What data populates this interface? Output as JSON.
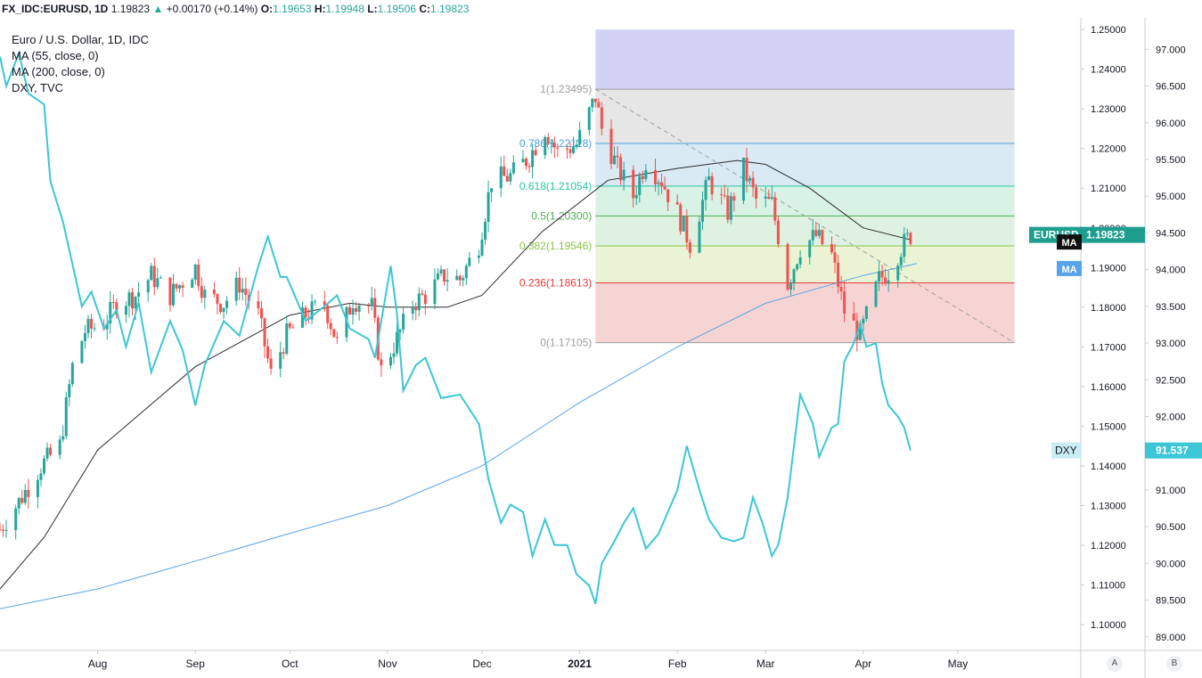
{
  "header": {
    "symbol": "FX_IDC:EURUSD, 1D",
    "last": "1.19823",
    "change_arrow": "▲",
    "change": "+0.00170 (+0.14%)",
    "o_label": "O:",
    "o_value": "1.19653",
    "h_label": "H:",
    "h_value": "1.19948",
    "l_label": "L:",
    "l_value": "1.19506",
    "c_label": "C:",
    "c_value": "1.19823"
  },
  "legend": [
    "Euro / U.S. Dollar, 1D, IDC",
    "MA (55, close, 0)",
    "MA (200, close, 0)",
    "DXY, TVC"
  ],
  "colors": {
    "up": "#26a69a",
    "down": "#ef5350",
    "dxy": "#3cc6d6",
    "ma55": "#2a2a2a",
    "ma200": "#57a5e8",
    "eurusd_tag": "#1e9e8e"
  },
  "labels": {
    "eurusd_tag": "EURUSD",
    "eurusd_price": "1.19823",
    "ma_tag1": "MA",
    "ma_tag2": "MA",
    "dxy_tag": "DXY",
    "dxy_price": "91.537",
    "corner_a": "A",
    "corner_b": "B"
  },
  "chart_data": {
    "type": "candlestick",
    "x_labels": [
      "Aug",
      "Sep",
      "Oct",
      "Nov",
      "Dec",
      "2021",
      "Feb",
      "Mar",
      "Apr",
      "May"
    ],
    "x_range": [
      "2020-07-01",
      "2021-05-31"
    ],
    "axis_a": {
      "name": "EURUSD",
      "ylim": [
        1.0935,
        1.2525
      ],
      "ticks": [
        "1.25000",
        "1.24000",
        "1.23000",
        "1.22000",
        "1.21000",
        "1.20000",
        "1.19000",
        "1.18000",
        "1.17000",
        "1.16000",
        "1.15000",
        "1.14000",
        "1.13000",
        "1.12000",
        "1.11000",
        "1.10000"
      ]
    },
    "axis_b": {
      "name": "DXY",
      "ylim": [
        88.815,
        97.405
      ],
      "ticks": [
        "97.000",
        "96.500",
        "96.000",
        "95.500",
        "95.000",
        "94.500",
        "94.000",
        "93.500",
        "93.000",
        "92.500",
        "92.000",
        "91.500",
        "91.000",
        "90.500",
        "90.000",
        "89.500",
        "89.000"
      ]
    },
    "fibonacci": {
      "start": {
        "date": "2021-01-06",
        "price": 1.23495
      },
      "end": {
        "date": "2021-03-31",
        "price": 1.17105
      },
      "extend_to": "2021-05-19",
      "top_band": 1.25,
      "levels": [
        {
          "label": "1(1.23495)",
          "price": 1.23495,
          "color": "#9e9e9e",
          "fill": "#e6e6e6"
        },
        {
          "label": "0.786(1.22128)",
          "price": 1.22128,
          "color": "#4aa0dc",
          "fill": "#d9eaf5"
        },
        {
          "label": "0.618(1.21054)",
          "price": 1.21054,
          "color": "#26c6a0",
          "fill": "#d8f2e6"
        },
        {
          "label": "0.5(1.20300)",
          "price": 1.203,
          "color": "#4caf50",
          "fill": "#dff2e2"
        },
        {
          "label": "0.382(1.19546)",
          "price": 1.19546,
          "color": "#8bc34a",
          "fill": "#eaf4d4"
        },
        {
          "label": "0.236(1.18613)",
          "price": 1.18613,
          "color": "#e53935",
          "fill": "#f7d4d4"
        },
        {
          "label": "0(1.17105)",
          "price": 1.17105,
          "color": "#9e9e9e",
          "fill": null
        }
      ],
      "extension_fill": "#d2d2f4"
    },
    "eurusd_close_anchors": [
      [
        "2020-07-01",
        1.124
      ],
      [
        "2020-07-07",
        1.131
      ],
      [
        "2020-07-14",
        1.14
      ],
      [
        "2020-07-20",
        1.145
      ],
      [
        "2020-07-24",
        1.165
      ],
      [
        "2020-07-28",
        1.174
      ],
      [
        "2020-08-03",
        1.176
      ],
      [
        "2020-08-07",
        1.181
      ],
      [
        "2020-08-13",
        1.183
      ],
      [
        "2020-08-18",
        1.188
      ],
      [
        "2020-08-24",
        1.183
      ],
      [
        "2020-09-01",
        1.19
      ],
      [
        "2020-09-04",
        1.183
      ],
      [
        "2020-09-10",
        1.181
      ],
      [
        "2020-09-15",
        1.186
      ],
      [
        "2020-09-21",
        1.178
      ],
      [
        "2020-09-25",
        1.163
      ],
      [
        "2020-09-30",
        1.173
      ],
      [
        "2020-10-06",
        1.178
      ],
      [
        "2020-10-12",
        1.181
      ],
      [
        "2020-10-16",
        1.171
      ],
      [
        "2020-10-21",
        1.182
      ],
      [
        "2020-10-27",
        1.18
      ],
      [
        "2020-10-30",
        1.164
      ],
      [
        "2020-11-04",
        1.172
      ],
      [
        "2020-11-09",
        1.181
      ],
      [
        "2020-11-13",
        1.183
      ],
      [
        "2020-11-19",
        1.188
      ],
      [
        "2020-11-24",
        1.187
      ],
      [
        "2020-11-30",
        1.196
      ],
      [
        "2020-12-04",
        1.212
      ],
      [
        "2020-12-10",
        1.213
      ],
      [
        "2020-12-16",
        1.218
      ],
      [
        "2020-12-21",
        1.225
      ],
      [
        "2020-12-25",
        1.219
      ],
      [
        "2020-12-31",
        1.221
      ],
      [
        "2021-01-06",
        1.233
      ],
      [
        "2021-01-08",
        1.225
      ],
      [
        "2021-01-13",
        1.215
      ],
      [
        "2021-01-18",
        1.208
      ],
      [
        "2021-01-22",
        1.217
      ],
      [
        "2021-01-27",
        1.212
      ],
      [
        "2021-02-02",
        1.202
      ],
      [
        "2021-02-05",
        1.196
      ],
      [
        "2021-02-11",
        1.212
      ],
      [
        "2021-02-17",
        1.204
      ],
      [
        "2021-02-22",
        1.215
      ],
      [
        "2021-02-26",
        1.207
      ],
      [
        "2021-03-03",
        1.206
      ],
      [
        "2021-03-08",
        1.186
      ],
      [
        "2021-03-12",
        1.195
      ],
      [
        "2021-03-17",
        1.198
      ],
      [
        "2021-03-22",
        1.193
      ],
      [
        "2021-03-26",
        1.179
      ],
      [
        "2021-03-31",
        1.173
      ],
      [
        "2021-04-06",
        1.187
      ],
      [
        "2021-04-09",
        1.189
      ],
      [
        "2021-04-13",
        1.195
      ],
      [
        "2021-04-16",
        1.19823
      ]
    ],
    "ma55_anchors": [
      [
        "2020-07-01",
        1.109
      ],
      [
        "2020-07-15",
        1.122
      ],
      [
        "2020-08-01",
        1.144
      ],
      [
        "2020-09-01",
        1.165
      ],
      [
        "2020-10-01",
        1.178
      ],
      [
        "2020-10-20",
        1.181
      ],
      [
        "2020-11-01",
        1.18
      ],
      [
        "2020-11-20",
        1.18
      ],
      [
        "2020-12-01",
        1.183
      ],
      [
        "2020-12-20",
        1.199
      ],
      [
        "2021-01-10",
        1.212
      ],
      [
        "2021-02-01",
        1.215
      ],
      [
        "2021-02-20",
        1.217
      ],
      [
        "2021-03-01",
        1.216
      ],
      [
        "2021-03-15",
        1.21
      ],
      [
        "2021-04-01",
        1.2
      ],
      [
        "2021-04-16",
        1.197
      ]
    ],
    "ma200_anchors": [
      [
        "2020-07-01",
        1.104
      ],
      [
        "2020-08-01",
        1.109
      ],
      [
        "2020-09-01",
        1.116
      ],
      [
        "2020-10-01",
        1.123
      ],
      [
        "2020-11-01",
        1.13
      ],
      [
        "2020-12-01",
        1.14
      ],
      [
        "2021-01-01",
        1.156
      ],
      [
        "2021-02-01",
        1.17
      ],
      [
        "2021-03-01",
        1.181
      ],
      [
        "2021-04-01",
        1.188
      ],
      [
        "2021-04-18",
        1.191
      ]
    ],
    "dxy_anchors": [
      [
        "2020-07-01",
        96.9
      ],
      [
        "2020-07-03",
        96.5
      ],
      [
        "2020-07-07",
        96.95
      ],
      [
        "2020-07-10",
        96.4
      ],
      [
        "2020-07-15",
        96.25
      ],
      [
        "2020-07-17",
        95.2
      ],
      [
        "2020-07-21",
        94.65
      ],
      [
        "2020-07-27",
        93.5
      ],
      [
        "2020-07-30",
        93.7
      ],
      [
        "2020-08-03",
        93.2
      ],
      [
        "2020-08-07",
        93.45
      ],
      [
        "2020-08-10",
        92.95
      ],
      [
        "2020-08-14",
        93.55
      ],
      [
        "2020-08-18",
        92.6
      ],
      [
        "2020-08-24",
        93.3
      ],
      [
        "2020-08-28",
        92.9
      ],
      [
        "2020-09-01",
        92.15
      ],
      [
        "2020-09-04",
        92.7
      ],
      [
        "2020-09-10",
        93.3
      ],
      [
        "2020-09-15",
        93.1
      ],
      [
        "2020-09-21",
        94.05
      ],
      [
        "2020-09-24",
        94.45
      ],
      [
        "2020-09-28",
        93.9
      ],
      [
        "2020-09-30",
        93.9
      ],
      [
        "2020-10-06",
        93.3
      ],
      [
        "2020-10-12",
        93.5
      ],
      [
        "2020-10-16",
        93.65
      ],
      [
        "2020-10-20",
        93.2
      ],
      [
        "2020-10-26",
        93.05
      ],
      [
        "2020-10-28",
        92.8
      ],
      [
        "2020-11-02",
        94.05
      ],
      [
        "2020-11-04",
        93.4
      ],
      [
        "2020-11-06",
        92.35
      ],
      [
        "2020-11-10",
        92.7
      ],
      [
        "2020-11-13",
        92.8
      ],
      [
        "2020-11-18",
        92.25
      ],
      [
        "2020-11-24",
        92.3
      ],
      [
        "2020-11-30",
        91.9
      ],
      [
        "2020-12-03",
        91.15
      ],
      [
        "2020-12-07",
        90.55
      ],
      [
        "2020-12-10",
        90.8
      ],
      [
        "2020-12-14",
        90.7
      ],
      [
        "2020-12-17",
        90.1
      ],
      [
        "2020-12-21",
        90.6
      ],
      [
        "2020-12-24",
        90.25
      ],
      [
        "2020-12-28",
        90.25
      ],
      [
        "2020-12-31",
        89.85
      ],
      [
        "2021-01-04",
        89.7
      ],
      [
        "2021-01-06",
        89.45
      ],
      [
        "2021-01-08",
        90.0
      ],
      [
        "2021-01-12",
        90.3
      ],
      [
        "2021-01-15",
        90.55
      ],
      [
        "2021-01-18",
        90.75
      ],
      [
        "2021-01-22",
        90.2
      ],
      [
        "2021-01-26",
        90.4
      ],
      [
        "2021-01-29",
        90.7
      ],
      [
        "2021-02-01",
        91.0
      ],
      [
        "2021-02-04",
        91.6
      ],
      [
        "2021-02-08",
        91.0
      ],
      [
        "2021-02-11",
        90.6
      ],
      [
        "2021-02-15",
        90.35
      ],
      [
        "2021-02-19",
        90.3
      ],
      [
        "2021-02-22",
        90.35
      ],
      [
        "2021-02-25",
        90.9
      ],
      [
        "2021-02-28",
        90.55
      ],
      [
        "2021-03-03",
        90.1
      ],
      [
        "2021-03-05",
        90.25
      ],
      [
        "2021-03-08",
        90.9
      ],
      [
        "2021-03-10",
        91.6
      ],
      [
        "2021-03-12",
        92.3
      ],
      [
        "2021-03-16",
        91.9
      ],
      [
        "2021-03-18",
        91.45
      ],
      [
        "2021-03-22",
        91.85
      ],
      [
        "2021-03-24",
        91.9
      ],
      [
        "2021-03-26",
        92.75
      ],
      [
        "2021-03-29",
        93.0
      ],
      [
        "2021-03-31",
        93.25
      ],
      [
        "2021-04-02",
        92.95
      ],
      [
        "2021-04-05",
        93.0
      ],
      [
        "2021-04-07",
        92.45
      ],
      [
        "2021-04-09",
        92.15
      ],
      [
        "2021-04-12",
        92.0
      ],
      [
        "2021-04-14",
        91.85
      ],
      [
        "2021-04-16",
        91.537
      ]
    ]
  }
}
